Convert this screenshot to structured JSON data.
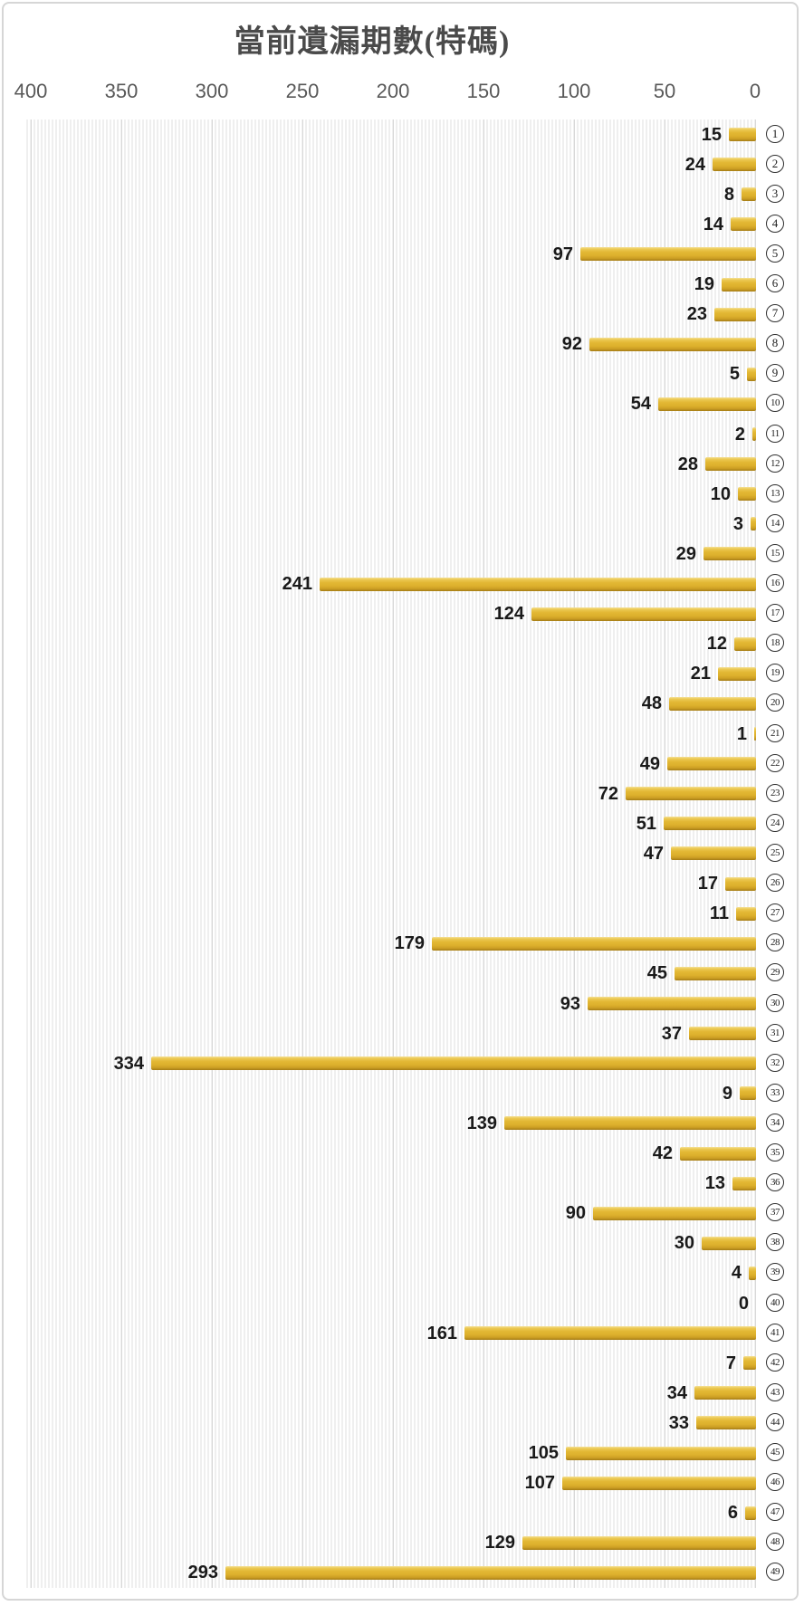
{
  "page": {
    "title": "當前遺漏期數(特碼)"
  },
  "colors": {
    "bar_gold_mid": "#e2b733",
    "bar_gold_highlight": "#f5e095",
    "bar_gold_shadow": "#a57d16",
    "axis_label": "#595959",
    "value_label": "#1a1a1a",
    "gridline": "#d8d8d8",
    "plot_stripe": "#efefef",
    "card_border": "#d6d6d6",
    "badge_ink": "#2f2f2f",
    "title_ink": "#4a4a4a"
  },
  "chart_data": {
    "type": "bar",
    "orientation": "horizontal",
    "title": "當前遺漏期數(特碼)",
    "categories": [
      1,
      2,
      3,
      4,
      5,
      6,
      7,
      8,
      9,
      10,
      11,
      12,
      13,
      14,
      15,
      16,
      17,
      18,
      19,
      20,
      21,
      22,
      23,
      24,
      25,
      26,
      27,
      28,
      29,
      30,
      31,
      32,
      33,
      34,
      35,
      36,
      37,
      38,
      39,
      40,
      41,
      42,
      43,
      44,
      45,
      46,
      47,
      48,
      49
    ],
    "category_display": "circled-number",
    "values": [
      15,
      24,
      8,
      14,
      97,
      19,
      23,
      92,
      5,
      54,
      2,
      28,
      10,
      3,
      29,
      241,
      124,
      12,
      21,
      48,
      1,
      49,
      72,
      51,
      47,
      17,
      11,
      179,
      45,
      93,
      37,
      334,
      9,
      139,
      42,
      13,
      90,
      30,
      4,
      0,
      161,
      7,
      34,
      33,
      105,
      107,
      6,
      129,
      293
    ],
    "value_labels": "outside-end",
    "x_axis": {
      "position": "top",
      "min": 0,
      "max": 400,
      "reversed": true,
      "ticks": [
        400,
        350,
        300,
        250,
        200,
        150,
        100,
        50,
        0
      ]
    },
    "y_axis_side": "right",
    "grid": true,
    "legend": false,
    "plot_background": "striped"
  }
}
